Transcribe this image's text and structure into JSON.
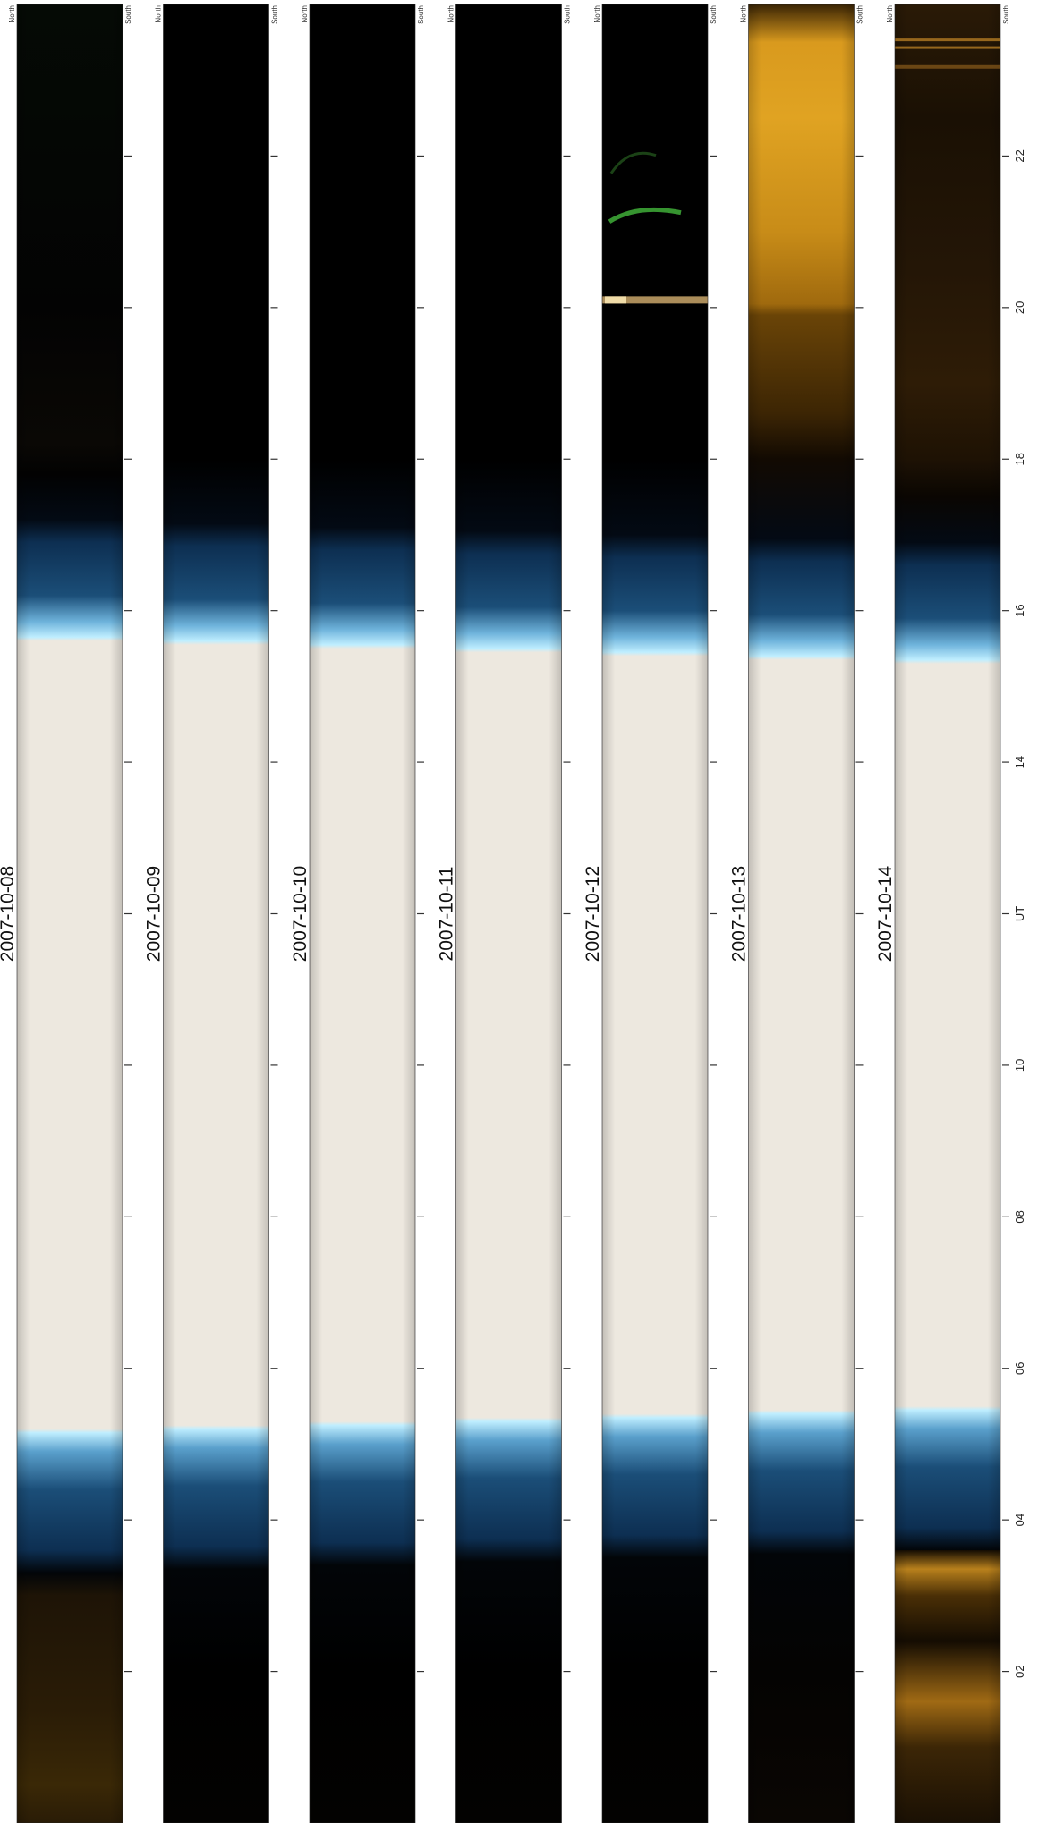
{
  "chart_data": {
    "type": "keogram",
    "axis": {
      "label": "UT",
      "ticks": [
        "02",
        "04",
        "06",
        "08",
        "10",
        "UT",
        "14",
        "16",
        "18",
        "20",
        "22"
      ],
      "tick_hours": [
        2,
        4,
        6,
        8,
        10,
        12,
        14,
        16,
        18,
        20,
        22
      ],
      "range_hours": [
        0,
        24
      ],
      "orientation": "vertical, 00 UT at bottom, 24 UT at top"
    },
    "direction_labels": {
      "north": "North",
      "south": "South"
    },
    "panels": [
      {
        "date": "2007-10-08",
        "daylight_start_ut": 5.2,
        "daylight_end_ut": 15.6,
        "aurora": "faint orange, dim green near top"
      },
      {
        "date": "2007-10-09",
        "daylight_start_ut": 5.25,
        "daylight_end_ut": 15.55,
        "aurora": "faint"
      },
      {
        "date": "2007-10-10",
        "daylight_start_ut": 5.3,
        "daylight_end_ut": 15.5,
        "aurora": "faint"
      },
      {
        "date": "2007-10-11",
        "daylight_start_ut": 5.35,
        "daylight_end_ut": 15.45,
        "aurora": "none"
      },
      {
        "date": "2007-10-12",
        "daylight_start_ut": 5.4,
        "daylight_end_ut": 15.4,
        "aurora": "green arc ~21 UT"
      },
      {
        "date": "2007-10-13",
        "daylight_start_ut": 5.45,
        "daylight_end_ut": 15.35,
        "aurora": "bright orange 19-24 UT"
      },
      {
        "date": "2007-10-14",
        "daylight_start_ut": 5.5,
        "daylight_end_ut": 15.3,
        "aurora": "orange patches"
      }
    ],
    "colors": {
      "daylight": "#ede8df",
      "twilight_deep": "#0d2f52",
      "twilight_bright": "#bfeeff",
      "night": "#000000",
      "aurora_orange": "#d99a1e",
      "aurora_green": "#3fae38"
    }
  }
}
